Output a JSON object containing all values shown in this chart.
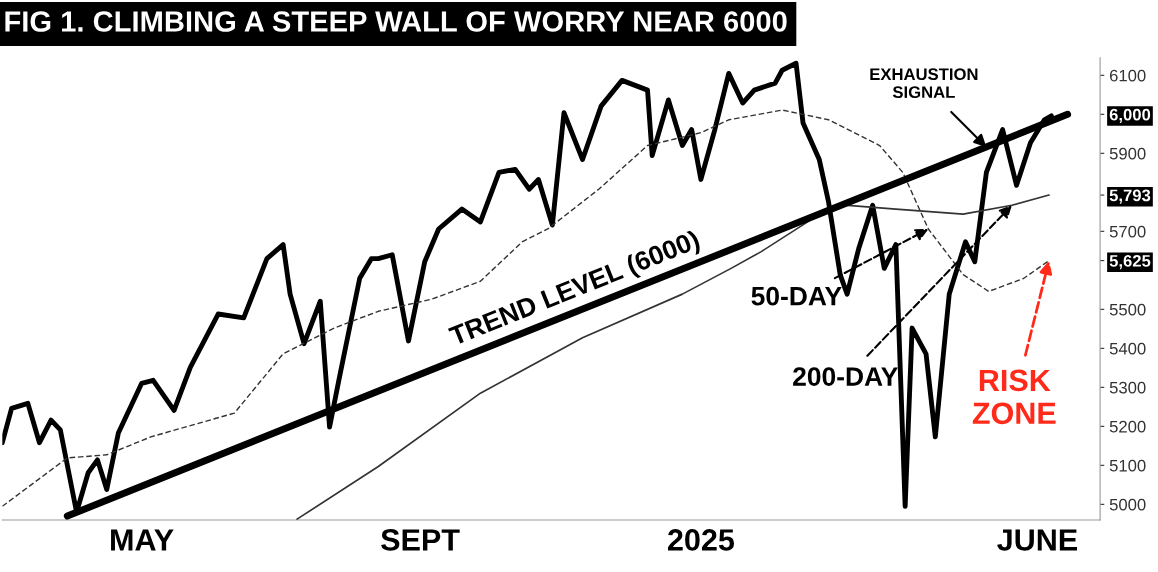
{
  "chart_data": {
    "type": "line",
    "title": "FIG 1. CLIMBING A STEEP WALL OF WORRY NEAR 6000",
    "xlim": [
      "2024-03-14",
      "2025-06-30"
    ],
    "ylim": [
      4960,
      6145
    ],
    "xticks": [
      {
        "value": "2024-05-13",
        "label": "MAY"
      },
      {
        "value": "2024-09-10",
        "label": "SEPT"
      },
      {
        "value": "2025-01-09",
        "label": "2025"
      },
      {
        "value": "2025-06-03",
        "label": "JUNE"
      }
    ],
    "yticks": [
      5000,
      5100,
      5200,
      5300,
      5400,
      5500,
      {
        "value": 5625,
        "label": "5,625"
      },
      5700,
      {
        "value": 5793,
        "label": "5,793"
      },
      5900,
      {
        "value": 6000,
        "label": "6,000"
      },
      6100
    ],
    "grid": false,
    "series": [
      {
        "color": "#000000",
        "line_style": "solid",
        "x": [
          "2024-03-14",
          "2024-03-18",
          "2024-03-25",
          "2024-03-30",
          "2024-04-04",
          "2024-04-08",
          "2024-04-15",
          "2024-04-20",
          "2024-04-24",
          "2024-04-28",
          "2024-05-03",
          "2024-05-13",
          "2024-05-18",
          "2024-05-27",
          "2024-06-03",
          "2024-06-15",
          "2024-06-26",
          "2024-07-06",
          "2024-07-13",
          "2024-07-16",
          "2024-07-22",
          "2024-07-29",
          "2024-08-02",
          "2024-08-06",
          "2024-08-15",
          "2024-08-20",
          "2024-08-23",
          "2024-08-29",
          "2024-09-05",
          "2024-09-12",
          "2024-09-18",
          "2024-09-28",
          "2024-10-06",
          "2024-10-14",
          "2024-10-21",
          "2024-10-27",
          "2024-10-31",
          "2024-11-06",
          "2024-11-11",
          "2024-11-19",
          "2024-11-27",
          "2024-12-06",
          "2024-12-17",
          "2024-12-19",
          "2024-12-26",
          "2025-01-01",
          "2025-01-05",
          "2025-01-09",
          "2025-01-15",
          "2025-01-21",
          "2025-01-27",
          "2025-02-01",
          "2025-02-10",
          "2025-02-13",
          "2025-02-19",
          "2025-02-22",
          "2025-03-01",
          "2025-03-05",
          "2025-03-10",
          "2025-03-13",
          "2025-03-18",
          "2025-03-24",
          "2025-03-29",
          "2025-04-03",
          "2025-04-07",
          "2025-04-10",
          "2025-04-16",
          "2025-04-20",
          "2025-04-26",
          "2025-05-03",
          "2025-05-07",
          "2025-05-12",
          "2025-05-19",
          "2025-05-25",
          "2025-05-31",
          "2025-06-06",
          "2025-06-09"
        ],
        "values": [
          5158,
          5246,
          5259,
          5158,
          5216,
          5191,
          4980,
          5081,
          5114,
          5038,
          5183,
          5310,
          5318,
          5241,
          5351,
          5488,
          5478,
          5630,
          5666,
          5539,
          5412,
          5521,
          5198,
          5318,
          5580,
          5630,
          5630,
          5640,
          5419,
          5622,
          5706,
          5757,
          5724,
          5851,
          5859,
          5808,
          5833,
          5716,
          6004,
          5884,
          6021,
          6087,
          6062,
          5894,
          6037,
          5920,
          5961,
          5833,
          5961,
          6105,
          6029,
          6062,
          6080,
          6113,
          6131,
          5978,
          5884,
          5775,
          5589,
          5539,
          5656,
          5767,
          5605,
          5666,
          4995,
          5452,
          5386,
          5173,
          5539,
          5673,
          5622,
          5851,
          5961,
          5818,
          5927,
          5986,
          5996
        ]
      },
      {
        "color": "#333333",
        "line_style": "dashed",
        "x": [
          "2024-03-14",
          "2024-04-11",
          "2024-04-28",
          "2024-05-17",
          "2024-06-22",
          "2024-07-13",
          "2024-08-04",
          "2024-08-23",
          "2024-09-15",
          "2024-10-06",
          "2024-10-24",
          "2024-11-04",
          "2024-11-26",
          "2024-12-17",
          "2025-01-09",
          "2025-01-21",
          "2025-02-13",
          "2025-03-05",
          "2025-03-27",
          "2025-04-06",
          "2025-04-17",
          "2025-05-02",
          "2025-05-13",
          "2025-05-28",
          "2025-06-08"
        ],
        "values": [
          4995,
          5119,
          5127,
          5173,
          5234,
          5386,
          5452,
          5495,
          5526,
          5572,
          5673,
          5706,
          5808,
          5920,
          5953,
          5986,
          6011,
          5986,
          5920,
          5851,
          5706,
          5589,
          5546,
          5579,
          5625
        ]
      },
      {
        "color": "#333333",
        "line_style": "solid",
        "x": [
          "2024-07-19",
          "2024-08-23",
          "2024-10-06",
          "2024-11-19",
          "2025-01-01",
          "2025-01-22",
          "2025-02-04",
          "2025-02-26",
          "2025-03-12",
          "2025-04-03",
          "2025-05-02",
          "2025-05-23",
          "2025-06-08"
        ],
        "values": [
          4962,
          5097,
          5285,
          5427,
          5539,
          5605,
          5648,
          5732,
          5767,
          5757,
          5744,
          5767,
          5793
        ]
      },
      {
        "color": "#000000",
        "line_style": "solid",
        "x": [
          "2024-04-11",
          "2025-06-16"
        ],
        "values": [
          4970,
          6000
        ]
      }
    ],
    "annotations": [
      {
        "text": "TREND LEVEL (6000)",
        "x": "2024-11-16",
        "y": 5493
      },
      {
        "text": "50-DAY",
        "x": "2025-04-17",
        "y": 5706
      },
      {
        "text": "200-DAY",
        "x": "2025-05-23",
        "y": 5767
      },
      {
        "text": "RISK\nZONE",
        "x": "2025-06-08",
        "y": 5625
      },
      {
        "text": "EXHAUSTION\nSIGNAL",
        "x": "2025-05-12",
        "y": 5916
      }
    ]
  }
}
